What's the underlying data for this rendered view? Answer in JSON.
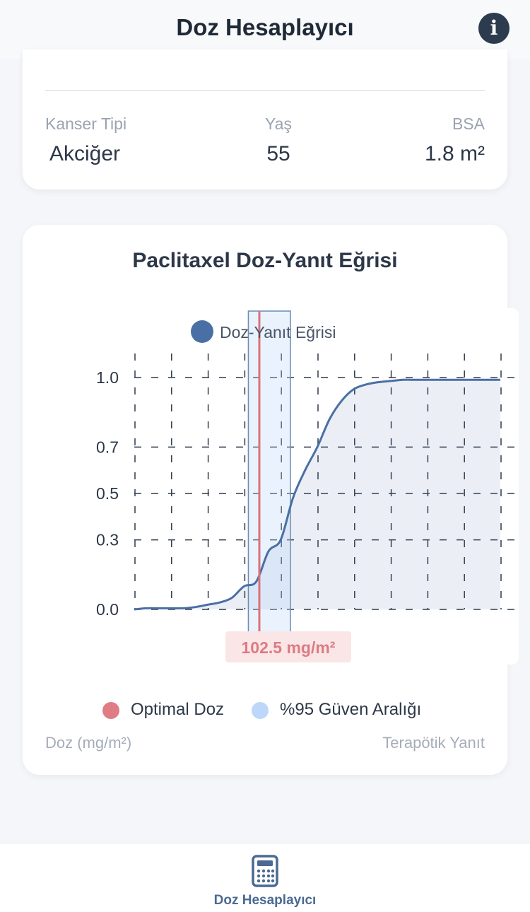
{
  "header": {
    "title": "Doz Hesaplayıcı",
    "info_icon": "info-icon"
  },
  "patient": {
    "cancer_type_label": "Kanser Tipi",
    "cancer_type_value": "Akciğer",
    "age_label": "Yaş",
    "age_value": "55",
    "bsa_label": "BSA",
    "bsa_value": "1.8 m²"
  },
  "chart_data": {
    "type": "area",
    "title": "Paclitaxel Doz-Yanıt Eğrisi",
    "xlabel": "Doz (mg/m²)",
    "ylabel": "Terapötik Yanıt",
    "series": [
      {
        "name": "Doz-Yanıt Eğrisi",
        "color": "#4a6fa5",
        "points": [
          [
            0,
            0.0
          ],
          [
            10,
            0.005
          ],
          [
            20,
            0.005
          ],
          [
            30,
            0.005
          ],
          [
            40,
            0.005
          ],
          [
            50,
            0.01
          ],
          [
            60,
            0.02
          ],
          [
            70,
            0.03
          ],
          [
            80,
            0.05
          ],
          [
            90,
            0.1
          ],
          [
            100,
            0.12
          ],
          [
            110,
            0.25
          ],
          [
            120,
            0.3
          ],
          [
            130,
            0.48
          ],
          [
            140,
            0.6
          ],
          [
            150,
            0.7
          ],
          [
            160,
            0.82
          ],
          [
            170,
            0.9
          ],
          [
            180,
            0.95
          ],
          [
            190,
            0.97
          ],
          [
            200,
            0.98
          ],
          [
            210,
            0.985
          ],
          [
            220,
            0.99
          ],
          [
            230,
            0.99
          ],
          [
            240,
            0.99
          ],
          [
            250,
            0.99
          ],
          [
            260,
            0.99
          ],
          [
            270,
            0.99
          ],
          [
            280,
            0.99
          ],
          [
            290,
            0.99
          ],
          [
            300,
            0.99
          ]
        ]
      }
    ],
    "y_ticks": [
      "0.0",
      "0.3",
      "0.5",
      "0.7",
      "1.0"
    ],
    "ylim": [
      0,
      1
    ],
    "xlim": [
      0,
      300
    ],
    "optimal_dose": {
      "value": 102.5,
      "label": "102.5 mg/m²",
      "name": "Optimal Doz",
      "color": "#e07c84"
    },
    "confidence_interval": {
      "low": 93.5,
      "high": 128,
      "name": "%95 Güven Aralığı",
      "color": "#bcd7fa"
    },
    "grid": true,
    "legend_position": "top"
  },
  "tabbar": {
    "active_label": "Doz Hesaplayıcı",
    "icon": "calculator-icon"
  }
}
